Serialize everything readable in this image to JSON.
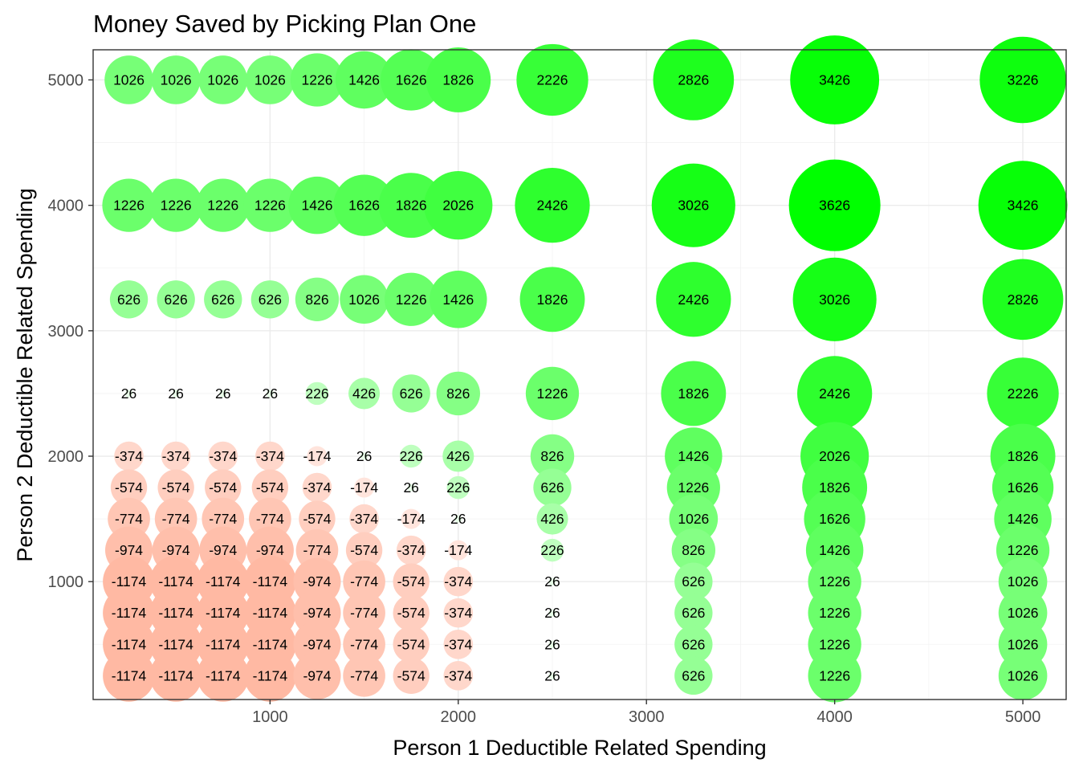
{
  "chart_data": {
    "type": "scatter",
    "title": "Money Saved by Picking Plan One",
    "xlabel": "Person 1 Deductible Related Spending",
    "ylabel": "Person 2 Deductible Related Spending",
    "xlim": [
      60,
      5230
    ],
    "ylim": [
      60,
      5240
    ],
    "xticks": [
      1000,
      2000,
      3000,
      4000,
      5000
    ],
    "yticks": [
      1000,
      2000,
      3000,
      4000,
      5000
    ],
    "grid": true,
    "x": [
      250,
      500,
      750,
      1000,
      1250,
      1500,
      1750,
      2000,
      2500,
      3250,
      4000,
      5000
    ],
    "y": [
      5000,
      4000,
      3250,
      2500,
      2000,
      1750,
      1500,
      1250,
      1000,
      750,
      500,
      250
    ],
    "values": [
      [
        1026,
        1026,
        1026,
        1026,
        1226,
        1426,
        1626,
        1826,
        2226,
        2826,
        3426,
        3226
      ],
      [
        1226,
        1226,
        1226,
        1226,
        1426,
        1626,
        1826,
        2026,
        2426,
        3026,
        3626,
        3426
      ],
      [
        626,
        626,
        626,
        626,
        826,
        1026,
        1226,
        1426,
        1826,
        2426,
        3026,
        2826
      ],
      [
        26,
        26,
        26,
        26,
        226,
        426,
        626,
        826,
        1226,
        1826,
        2426,
        2226
      ],
      [
        -374,
        -374,
        -374,
        -374,
        -174,
        26,
        226,
        426,
        826,
        1426,
        2026,
        1826
      ],
      [
        -574,
        -574,
        -574,
        -574,
        -374,
        -174,
        26,
        226,
        626,
        1226,
        1826,
        1626
      ],
      [
        -774,
        -774,
        -774,
        -774,
        -574,
        -374,
        -174,
        26,
        426,
        1026,
        1626,
        1426
      ],
      [
        -974,
        -974,
        -974,
        -974,
        -774,
        -574,
        -374,
        -174,
        226,
        826,
        1426,
        1226
      ],
      [
        -1174,
        -1174,
        -1174,
        -1174,
        -974,
        -774,
        -574,
        -374,
        26,
        626,
        1226,
        1026
      ],
      [
        -1174,
        -1174,
        -1174,
        -1174,
        -974,
        -774,
        -574,
        -374,
        26,
        626,
        1226,
        1026
      ],
      [
        -1174,
        -1174,
        -1174,
        -1174,
        -974,
        -774,
        -574,
        -374,
        26,
        626,
        1226,
        1026
      ],
      [
        -1174,
        -1174,
        -1174,
        -1174,
        -974,
        -774,
        -574,
        -374,
        26,
        626,
        1226,
        1026
      ]
    ],
    "colors": {
      "negative_max": "#ffb9a3",
      "zero": "#ffffff",
      "positive_max": "#00ff00"
    }
  }
}
